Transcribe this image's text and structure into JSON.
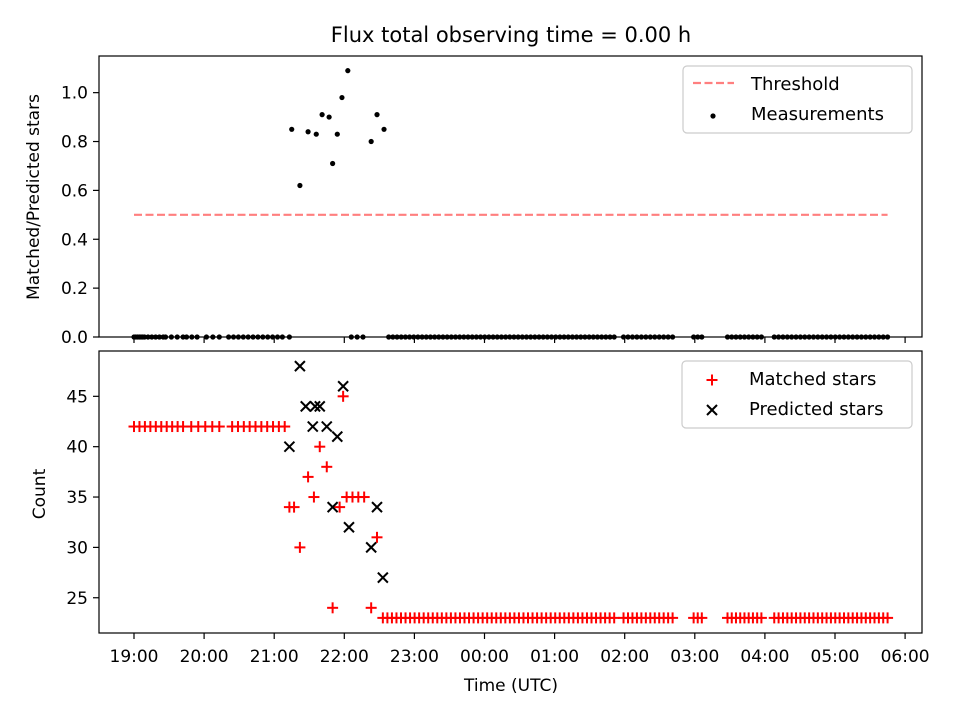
{
  "chart_data": [
    {
      "type": "scatter",
      "title": "Flux total observing time = 0.00 h",
      "xlabel": "",
      "ylabel": "Matched/Predicted stars",
      "ylim": [
        0,
        1.15
      ],
      "yticks": [
        "0.0",
        "0.2",
        "0.4",
        "0.6",
        "0.8",
        "1.0"
      ],
      "grid": false,
      "legend_position": "top-right",
      "threshold": {
        "name": "Threshold",
        "value": 0.5,
        "x_start": "19:00",
        "x_end": "05:45",
        "color": "#ff7f7f"
      },
      "series": [
        {
          "name": "Measurements",
          "color": "#000000",
          "points": [
            [
              "21:15",
              0.85
            ],
            [
              "21:22",
              0.62
            ],
            [
              "21:29",
              0.84
            ],
            [
              "21:36",
              0.83
            ],
            [
              "21:41",
              0.91
            ],
            [
              "21:47",
              0.9
            ],
            [
              "21:50",
              0.71
            ],
            [
              "21:54",
              0.83
            ],
            [
              "21:58",
              0.98
            ],
            [
              "22:03",
              1.09
            ],
            [
              "22:23",
              0.8
            ],
            [
              "22:28",
              0.91
            ],
            [
              "22:34",
              0.85
            ]
          ],
          "zero_segments": [
            [
              "19:00",
              "19:09",
              7
            ],
            [
              "19:12",
              "19:25",
              5
            ],
            [
              "19:27",
              "19:42",
              4
            ],
            [
              "19:45",
              "19:54",
              3
            ],
            [
              "20:02",
              "20:13",
              3
            ],
            [
              "20:21",
              "21:07",
              12
            ],
            [
              "21:13",
              "21:13",
              1
            ],
            [
              "22:06",
              "22:16",
              3
            ],
            [
              "22:38",
              "01:51",
              55
            ],
            [
              "01:59",
              "02:41",
              12
            ],
            [
              "02:59",
              "03:06",
              3
            ],
            [
              "03:28",
              "03:57",
              9
            ],
            [
              "04:08",
              "05:45",
              27
            ]
          ]
        }
      ]
    },
    {
      "type": "scatter",
      "title": "",
      "xlabel": "Time (UTC)",
      "ylabel": "Count",
      "ylim": [
        21.5,
        49.5
      ],
      "yticks": [
        "25",
        "30",
        "35",
        "40",
        "45"
      ],
      "xticks": [
        "19:00",
        "20:00",
        "21:00",
        "22:00",
        "23:00",
        "00:00",
        "01:00",
        "02:00",
        "03:00",
        "04:00",
        "05:00",
        "06:00"
      ],
      "grid": false,
      "legend_position": "top-right",
      "series": [
        {
          "name": "Matched stars",
          "color": "#ff0000",
          "points": [
            [
              "21:13",
              34
            ],
            [
              "21:17",
              34
            ],
            [
              "21:22",
              30
            ],
            [
              "21:29",
              37
            ],
            [
              "21:34",
              35
            ],
            [
              "21:39",
              40
            ],
            [
              "21:45",
              38
            ],
            [
              "21:50",
              24
            ],
            [
              "21:56",
              34
            ],
            [
              "21:59",
              45
            ],
            [
              "22:02",
              35
            ],
            [
              "22:07",
              35
            ],
            [
              "22:12",
              35
            ],
            [
              "22:17",
              35
            ],
            [
              "22:23",
              24
            ],
            [
              "22:28",
              31
            ]
          ],
          "constant_segments": [
            [
              "19:00",
              "19:42",
              42,
              10
            ],
            [
              "19:49",
              "20:13",
              42,
              5
            ],
            [
              "20:24",
              "21:09",
              42,
              10
            ],
            [
              "22:33",
              "01:51",
              23,
              52
            ],
            [
              "01:59",
              "02:41",
              23,
              12
            ],
            [
              "02:59",
              "03:06",
              23,
              3
            ],
            [
              "03:28",
              "03:57",
              23,
              9
            ],
            [
              "04:08",
              "05:45",
              23,
              27
            ]
          ]
        },
        {
          "name": "Predicted stars",
          "color": "#000000",
          "points": [
            [
              "21:13",
              40
            ],
            [
              "21:22",
              48
            ],
            [
              "21:27",
              44
            ],
            [
              "21:33",
              42
            ],
            [
              "21:35",
              44
            ],
            [
              "21:39",
              44
            ],
            [
              "21:45",
              42
            ],
            [
              "21:50",
              34
            ],
            [
              "21:54",
              41
            ],
            [
              "21:59",
              46
            ],
            [
              "22:04",
              32
            ],
            [
              "22:23",
              30
            ],
            [
              "22:28",
              34
            ],
            [
              "22:33",
              27
            ]
          ]
        }
      ]
    }
  ]
}
